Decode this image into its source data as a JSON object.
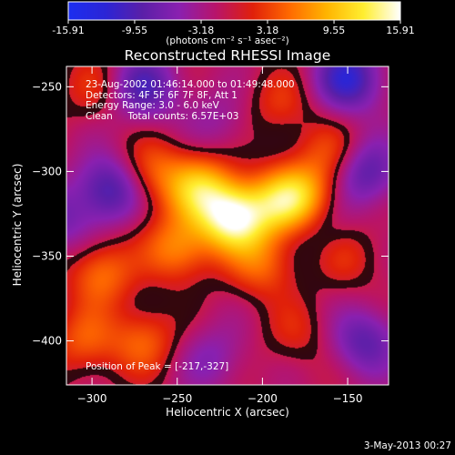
{
  "colorbar": {
    "ticks": [
      "-15.91",
      "-9.55",
      "-3.18",
      "3.18",
      "9.55",
      "15.91"
    ],
    "tick_values": [
      -15.91,
      -9.55,
      -3.18,
      3.18,
      9.55,
      15.91
    ],
    "units": "(photons cm⁻² s⁻¹ asec⁻²)",
    "stops": [
      "#1c2ef0",
      "#2b25d6",
      "#5a1fa8",
      "#8a20b0",
      "#b8146a",
      "#e0200a",
      "#ff6a00",
      "#ffb400",
      "#ffee30",
      "#ffffff"
    ]
  },
  "chart_data": {
    "type": "heatmap",
    "title": "Reconstructed RHESSI Image",
    "xlabel": "Heliocentric X (arcsec)",
    "ylabel": "Heliocentric Y (arcsec)",
    "xlim": [
      -315,
      -126
    ],
    "ylim": [
      -426,
      -238
    ],
    "x_ticks": [
      -300,
      -250,
      -200,
      -150
    ],
    "y_ticks": [
      -250,
      -300,
      -350,
      -400
    ],
    "color_range": [
      -15.91,
      15.91
    ],
    "annotations": [
      "23-Aug-2002 01:46:14.000 to 01:49:48.000",
      "Detectors: 4F 5F 6F 7F 8F, Att 1",
      "Energy Range: 3.0 - 6.0 keV",
      "Clean     Total counts: 6.57E+03"
    ],
    "peak_label": "Position of Peak = [-217,-327]",
    "peak": [
      -217,
      -327
    ],
    "sources": [
      {
        "x": -217,
        "y": -327,
        "value": 15.9
      },
      {
        "x": -237,
        "y": -310,
        "value": 10.5
      },
      {
        "x": -190,
        "y": -318,
        "value": 9.0
      },
      {
        "x": -175,
        "y": -315,
        "value": 8.0
      },
      {
        "x": -160,
        "y": -290,
        "value": 5.0
      },
      {
        "x": -265,
        "y": -300,
        "value": 6.0
      },
      {
        "x": -250,
        "y": -345,
        "value": 8.0
      },
      {
        "x": -295,
        "y": -360,
        "value": 7.0
      },
      {
        "x": -305,
        "y": -400,
        "value": 5.5
      },
      {
        "x": -270,
        "y": -400,
        "value": 6.0
      },
      {
        "x": -200,
        "y": -355,
        "value": 6.0
      },
      {
        "x": -150,
        "y": -350,
        "value": 3.5
      },
      {
        "x": -300,
        "y": -250,
        "value": 3.5
      },
      {
        "x": -190,
        "y": -260,
        "value": 4.0
      },
      {
        "x": -180,
        "y": -395,
        "value": 3.0
      },
      {
        "x": -270,
        "y": -250,
        "value": -8.0
      },
      {
        "x": -290,
        "y": -310,
        "value": -9.0
      },
      {
        "x": -150,
        "y": -245,
        "value": -10.0
      },
      {
        "x": -140,
        "y": -300,
        "value": -8.0
      },
      {
        "x": -140,
        "y": -400,
        "value": -7.0
      },
      {
        "x": -225,
        "y": -270,
        "value": -3.0
      },
      {
        "x": -230,
        "y": -410,
        "value": -4.0
      },
      {
        "x": -320,
        "y": -330,
        "value": -5.0
      },
      {
        "x": -165,
        "y": -330,
        "value": -3.0
      }
    ]
  },
  "footer": {
    "date": "3-May-2013 00:27"
  }
}
